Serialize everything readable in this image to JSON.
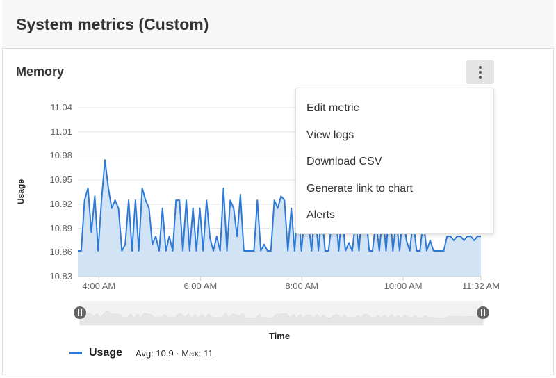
{
  "header": {
    "title": "System metrics (Custom)"
  },
  "card": {
    "title": "Memory",
    "menu_icon": "kebab-vertical-icon"
  },
  "menu": {
    "items": [
      "Edit metric",
      "View logs",
      "Download CSV",
      "Generate link to chart",
      "Alerts"
    ]
  },
  "colors": {
    "line": "#2d7ad6",
    "fill": "#d3e3f6",
    "navigator": "#f2f2f2",
    "handle": "#666666"
  },
  "chart_data": {
    "type": "area",
    "ylabel": "Usage",
    "xlabel": "Time",
    "ylim": [
      10.83,
      11.04
    ],
    "yticks": [
      "11.04",
      "11.01",
      "10.98",
      "10.95",
      "10.92",
      "10.89",
      "10.86",
      "10.83"
    ],
    "xlim": [
      "3:35 AM",
      "11:32 AM"
    ],
    "xticks": [
      "4:00 AM",
      "6:00 AM",
      "8:00 AM",
      "10:00 AM",
      "11:32 AM"
    ],
    "grid": true,
    "legend_position": "bottom-left",
    "series": [
      {
        "name": "Usage",
        "stats": "Avg: 10.9 · Max: 11",
        "values": [
          10.862,
          10.862,
          10.925,
          10.94,
          10.885,
          10.93,
          10.862,
          10.925,
          10.975,
          10.94,
          10.915,
          10.925,
          10.915,
          10.862,
          10.87,
          10.925,
          10.862,
          10.925,
          10.862,
          10.94,
          10.925,
          10.915,
          10.87,
          10.88,
          10.862,
          10.915,
          10.862,
          10.88,
          10.862,
          10.925,
          10.925,
          10.862,
          10.925,
          10.862,
          10.915,
          10.862,
          10.915,
          10.862,
          10.925,
          10.878,
          10.862,
          10.88,
          10.862,
          10.94,
          10.862,
          10.925,
          10.915,
          10.88,
          10.932,
          10.862,
          10.862,
          10.862,
          10.862,
          10.925,
          10.862,
          10.87,
          10.862,
          10.862,
          10.925,
          10.915,
          10.93,
          10.925,
          10.862,
          10.915,
          10.862,
          10.92,
          10.862,
          10.91,
          10.9,
          10.862,
          10.92,
          10.862,
          10.91,
          10.862,
          10.862,
          10.9,
          10.92,
          10.862,
          10.91,
          10.862,
          10.872,
          10.862,
          10.9,
          10.862,
          10.92,
          10.91,
          10.862,
          10.862,
          10.9,
          10.862,
          10.91,
          10.862,
          10.92,
          10.862,
          10.9,
          10.862,
          10.91,
          10.875,
          10.862,
          10.9,
          10.862,
          10.862,
          10.9,
          10.862,
          10.875,
          10.862,
          10.862,
          10.862,
          10.862,
          10.88,
          10.88,
          10.875,
          10.88,
          10.88,
          10.875,
          10.88,
          10.88,
          10.875,
          10.88,
          10.88
        ]
      }
    ]
  }
}
